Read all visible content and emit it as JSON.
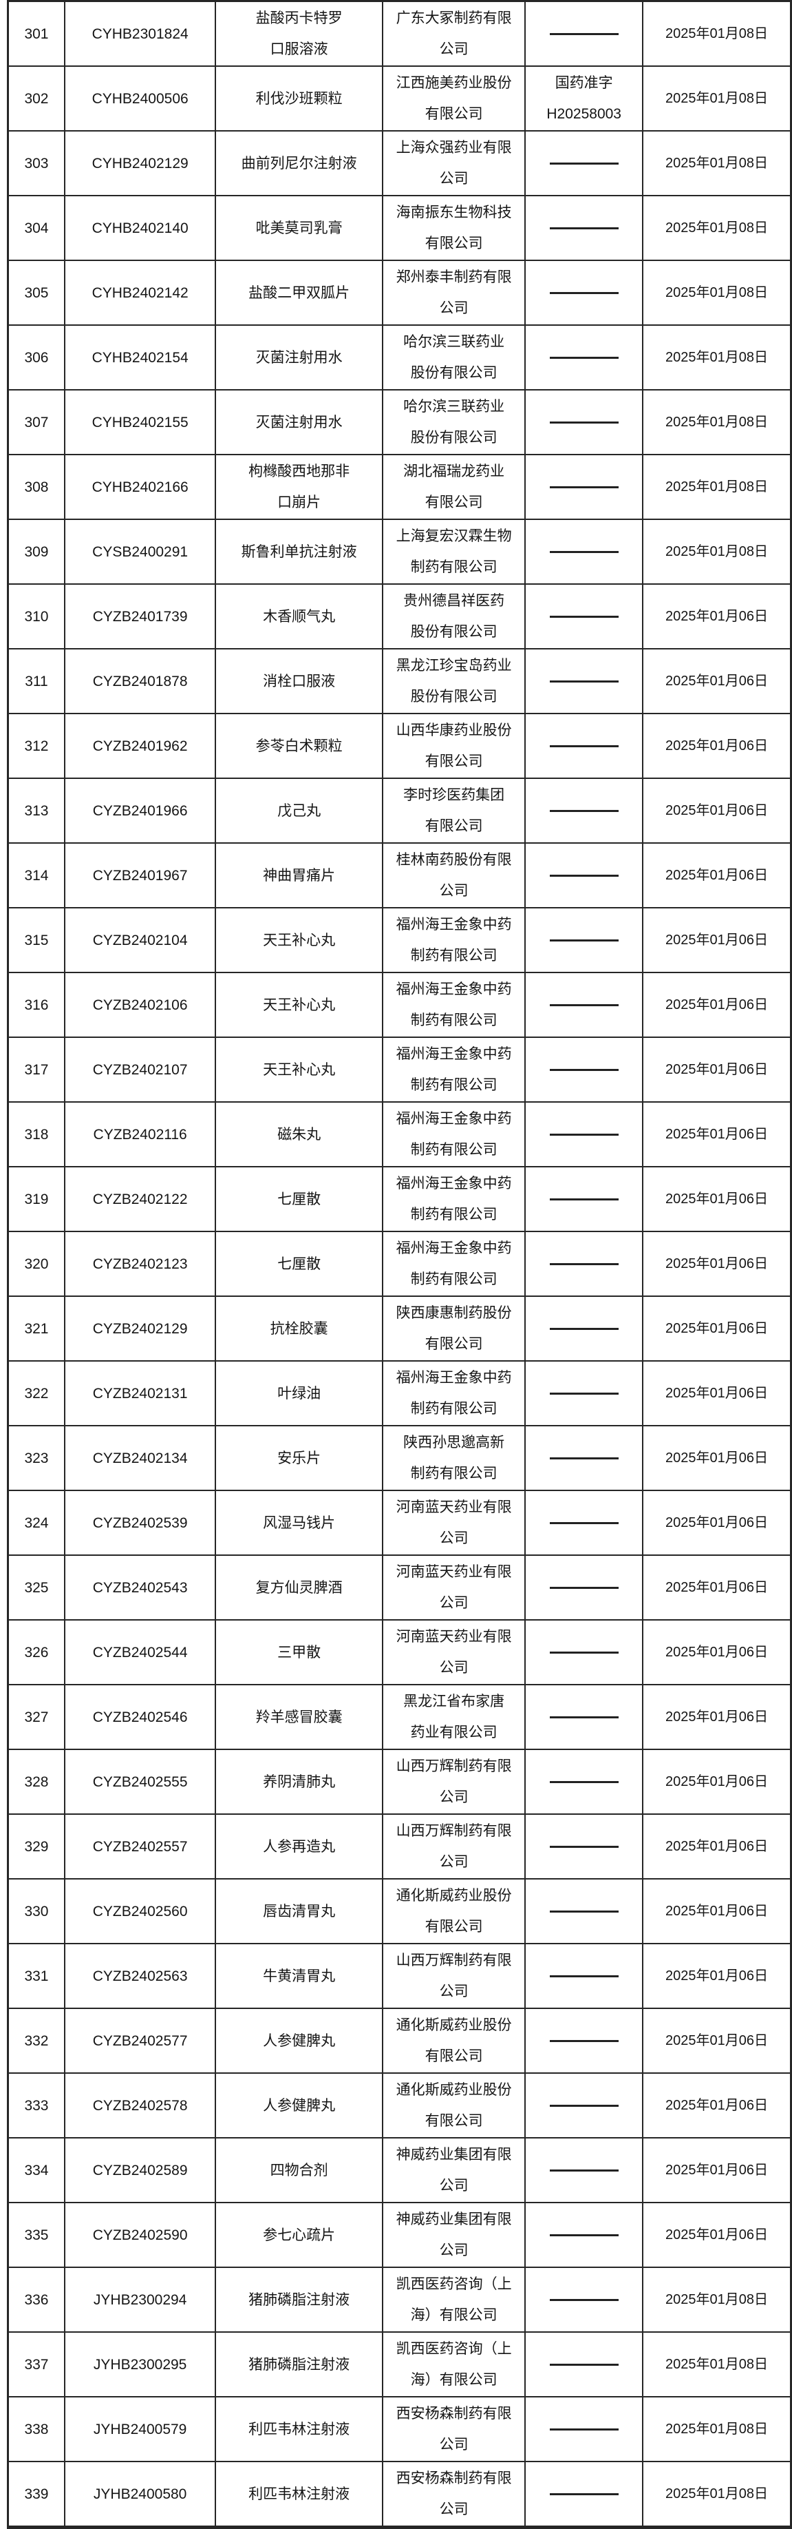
{
  "colors": {
    "border": "#262626",
    "text": "#151515",
    "background": "#ffffff"
  },
  "table": {
    "rows": [
      {
        "no": "301",
        "acceptance_no": "CYHB2301824",
        "drug_name": "盐酸丙卡特罗\n口服溶液",
        "company": "广东大冢制药有限\n公司",
        "approval_no": "",
        "date": "2025年01月08日"
      },
      {
        "no": "302",
        "acceptance_no": "CYHB2400506",
        "drug_name": "利伐沙班颗粒",
        "company": "江西施美药业股份\n有限公司",
        "approval_no": "国药准字\nH20258003",
        "date": "2025年01月08日"
      },
      {
        "no": "303",
        "acceptance_no": "CYHB2402129",
        "drug_name": "曲前列尼尔注射液",
        "company": "上海众强药业有限\n公司",
        "approval_no": "",
        "date": "2025年01月08日"
      },
      {
        "no": "304",
        "acceptance_no": "CYHB2402140",
        "drug_name": "吡美莫司乳膏",
        "company": "海南振东生物科技\n有限公司",
        "approval_no": "",
        "date": "2025年01月08日"
      },
      {
        "no": "305",
        "acceptance_no": "CYHB2402142",
        "drug_name": "盐酸二甲双胍片",
        "company": "郑州泰丰制药有限\n公司",
        "approval_no": "",
        "date": "2025年01月08日"
      },
      {
        "no": "306",
        "acceptance_no": "CYHB2402154",
        "drug_name": "灭菌注射用水",
        "company": "哈尔滨三联药业\n股份有限公司",
        "approval_no": "",
        "date": "2025年01月08日"
      },
      {
        "no": "307",
        "acceptance_no": "CYHB2402155",
        "drug_name": "灭菌注射用水",
        "company": "哈尔滨三联药业\n股份有限公司",
        "approval_no": "",
        "date": "2025年01月08日"
      },
      {
        "no": "308",
        "acceptance_no": "CYHB2402166",
        "drug_name": "枸橼酸西地那非\n口崩片",
        "company": "湖北福瑞龙药业\n有限公司",
        "approval_no": "",
        "date": "2025年01月08日"
      },
      {
        "no": "309",
        "acceptance_no": "CYSB2400291",
        "drug_name": "斯鲁利单抗注射液",
        "company": "上海复宏汉霖生物\n制药有限公司",
        "approval_no": "",
        "date": "2025年01月08日"
      },
      {
        "no": "310",
        "acceptance_no": "CYZB2401739",
        "drug_name": "木香顺气丸",
        "company": "贵州德昌祥医药\n股份有限公司",
        "approval_no": "",
        "date": "2025年01月06日"
      },
      {
        "no": "311",
        "acceptance_no": "CYZB2401878",
        "drug_name": "消栓口服液",
        "company": "黑龙江珍宝岛药业\n股份有限公司",
        "approval_no": "",
        "date": "2025年01月06日"
      },
      {
        "no": "312",
        "acceptance_no": "CYZB2401962",
        "drug_name": "参苓白术颗粒",
        "company": "山西华康药业股份\n有限公司",
        "approval_no": "",
        "date": "2025年01月06日"
      },
      {
        "no": "313",
        "acceptance_no": "CYZB2401966",
        "drug_name": "戊己丸",
        "company": "李时珍医药集团\n有限公司",
        "approval_no": "",
        "date": "2025年01月06日"
      },
      {
        "no": "314",
        "acceptance_no": "CYZB2401967",
        "drug_name": "神曲胃痛片",
        "company": "桂林南药股份有限\n公司",
        "approval_no": "",
        "date": "2025年01月06日"
      },
      {
        "no": "315",
        "acceptance_no": "CYZB2402104",
        "drug_name": "天王补心丸",
        "company": "福州海王金象中药\n制药有限公司",
        "approval_no": "",
        "date": "2025年01月06日"
      },
      {
        "no": "316",
        "acceptance_no": "CYZB2402106",
        "drug_name": "天王补心丸",
        "company": "福州海王金象中药\n制药有限公司",
        "approval_no": "",
        "date": "2025年01月06日"
      },
      {
        "no": "317",
        "acceptance_no": "CYZB2402107",
        "drug_name": "天王补心丸",
        "company": "福州海王金象中药\n制药有限公司",
        "approval_no": "",
        "date": "2025年01月06日"
      },
      {
        "no": "318",
        "acceptance_no": "CYZB2402116",
        "drug_name": "磁朱丸",
        "company": "福州海王金象中药\n制药有限公司",
        "approval_no": "",
        "date": "2025年01月06日"
      },
      {
        "no": "319",
        "acceptance_no": "CYZB2402122",
        "drug_name": "七厘散",
        "company": "福州海王金象中药\n制药有限公司",
        "approval_no": "",
        "date": "2025年01月06日"
      },
      {
        "no": "320",
        "acceptance_no": "CYZB2402123",
        "drug_name": "七厘散",
        "company": "福州海王金象中药\n制药有限公司",
        "approval_no": "",
        "date": "2025年01月06日"
      },
      {
        "no": "321",
        "acceptance_no": "CYZB2402129",
        "drug_name": "抗栓胶囊",
        "company": "陕西康惠制药股份\n有限公司",
        "approval_no": "",
        "date": "2025年01月06日"
      },
      {
        "no": "322",
        "acceptance_no": "CYZB2402131",
        "drug_name": "叶绿油",
        "company": "福州海王金象中药\n制药有限公司",
        "approval_no": "",
        "date": "2025年01月06日"
      },
      {
        "no": "323",
        "acceptance_no": "CYZB2402134",
        "drug_name": "安乐片",
        "company": "陕西孙思邈高新\n制药有限公司",
        "approval_no": "",
        "date": "2025年01月06日"
      },
      {
        "no": "324",
        "acceptance_no": "CYZB2402539",
        "drug_name": "风湿马钱片",
        "company": "河南蓝天药业有限\n公司",
        "approval_no": "",
        "date": "2025年01月06日"
      },
      {
        "no": "325",
        "acceptance_no": "CYZB2402543",
        "drug_name": "复方仙灵脾酒",
        "company": "河南蓝天药业有限\n公司",
        "approval_no": "",
        "date": "2025年01月06日"
      },
      {
        "no": "326",
        "acceptance_no": "CYZB2402544",
        "drug_name": "三甲散",
        "company": "河南蓝天药业有限\n公司",
        "approval_no": "",
        "date": "2025年01月06日"
      },
      {
        "no": "327",
        "acceptance_no": "CYZB2402546",
        "drug_name": "羚羊感冒胶囊",
        "company": "黑龙江省布家唐\n药业有限公司",
        "approval_no": "",
        "date": "2025年01月06日"
      },
      {
        "no": "328",
        "acceptance_no": "CYZB2402555",
        "drug_name": "养阴清肺丸",
        "company": "山西万辉制药有限\n公司",
        "approval_no": "",
        "date": "2025年01月06日"
      },
      {
        "no": "329",
        "acceptance_no": "CYZB2402557",
        "drug_name": "人参再造丸",
        "company": "山西万辉制药有限\n公司",
        "approval_no": "",
        "date": "2025年01月06日"
      },
      {
        "no": "330",
        "acceptance_no": "CYZB2402560",
        "drug_name": "唇齿清胃丸",
        "company": "通化斯威药业股份\n有限公司",
        "approval_no": "",
        "date": "2025年01月06日"
      },
      {
        "no": "331",
        "acceptance_no": "CYZB2402563",
        "drug_name": "牛黄清胃丸",
        "company": "山西万辉制药有限\n公司",
        "approval_no": "",
        "date": "2025年01月06日"
      },
      {
        "no": "332",
        "acceptance_no": "CYZB2402577",
        "drug_name": "人参健脾丸",
        "company": "通化斯威药业股份\n有限公司",
        "approval_no": "",
        "date": "2025年01月06日"
      },
      {
        "no": "333",
        "acceptance_no": "CYZB2402578",
        "drug_name": "人参健脾丸",
        "company": "通化斯威药业股份\n有限公司",
        "approval_no": "",
        "date": "2025年01月06日"
      },
      {
        "no": "334",
        "acceptance_no": "CYZB2402589",
        "drug_name": "四物合剂",
        "company": "神威药业集团有限\n公司",
        "approval_no": "",
        "date": "2025年01月06日"
      },
      {
        "no": "335",
        "acceptance_no": "CYZB2402590",
        "drug_name": "参七心疏片",
        "company": "神威药业集团有限\n公司",
        "approval_no": "",
        "date": "2025年01月06日"
      },
      {
        "no": "336",
        "acceptance_no": "JYHB2300294",
        "drug_name": "猪肺磷脂注射液",
        "company": "凯西医药咨询（上\n海）有限公司",
        "approval_no": "",
        "date": "2025年01月08日"
      },
      {
        "no": "337",
        "acceptance_no": "JYHB2300295",
        "drug_name": "猪肺磷脂注射液",
        "company": "凯西医药咨询（上\n海）有限公司",
        "approval_no": "",
        "date": "2025年01月08日"
      },
      {
        "no": "338",
        "acceptance_no": "JYHB2400579",
        "drug_name": "利匹韦林注射液",
        "company": "西安杨森制药有限\n公司",
        "approval_no": "",
        "date": "2025年01月08日"
      },
      {
        "no": "339",
        "acceptance_no": "JYHB2400580",
        "drug_name": "利匹韦林注射液",
        "company": "西安杨森制药有限\n公司",
        "approval_no": "",
        "date": "2025年01月08日"
      }
    ]
  }
}
